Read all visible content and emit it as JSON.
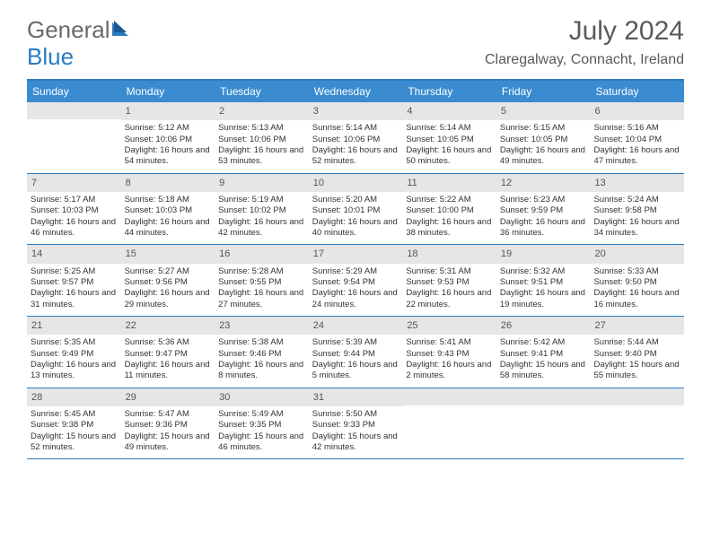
{
  "brand": {
    "part1": "General",
    "part2": "Blue"
  },
  "title": "July 2024",
  "location": "Claregalway, Connacht, Ireland",
  "colors": {
    "header_bar": "#3a8bd0",
    "border": "#2b7bbf",
    "daynum_bg": "#e6e6e6",
    "text": "#333333",
    "title_text": "#5a5a5a",
    "brand_gray": "#6a6a6a",
    "brand_blue": "#2b7bbf"
  },
  "dow": [
    "Sunday",
    "Monday",
    "Tuesday",
    "Wednesday",
    "Thursday",
    "Friday",
    "Saturday"
  ],
  "weeks": [
    [
      {
        "n": "",
        "sr": "",
        "ss": "",
        "dl": ""
      },
      {
        "n": "1",
        "sr": "Sunrise: 5:12 AM",
        "ss": "Sunset: 10:06 PM",
        "dl": "Daylight: 16 hours and 54 minutes."
      },
      {
        "n": "2",
        "sr": "Sunrise: 5:13 AM",
        "ss": "Sunset: 10:06 PM",
        "dl": "Daylight: 16 hours and 53 minutes."
      },
      {
        "n": "3",
        "sr": "Sunrise: 5:14 AM",
        "ss": "Sunset: 10:06 PM",
        "dl": "Daylight: 16 hours and 52 minutes."
      },
      {
        "n": "4",
        "sr": "Sunrise: 5:14 AM",
        "ss": "Sunset: 10:05 PM",
        "dl": "Daylight: 16 hours and 50 minutes."
      },
      {
        "n": "5",
        "sr": "Sunrise: 5:15 AM",
        "ss": "Sunset: 10:05 PM",
        "dl": "Daylight: 16 hours and 49 minutes."
      },
      {
        "n": "6",
        "sr": "Sunrise: 5:16 AM",
        "ss": "Sunset: 10:04 PM",
        "dl": "Daylight: 16 hours and 47 minutes."
      }
    ],
    [
      {
        "n": "7",
        "sr": "Sunrise: 5:17 AM",
        "ss": "Sunset: 10:03 PM",
        "dl": "Daylight: 16 hours and 46 minutes."
      },
      {
        "n": "8",
        "sr": "Sunrise: 5:18 AM",
        "ss": "Sunset: 10:03 PM",
        "dl": "Daylight: 16 hours and 44 minutes."
      },
      {
        "n": "9",
        "sr": "Sunrise: 5:19 AM",
        "ss": "Sunset: 10:02 PM",
        "dl": "Daylight: 16 hours and 42 minutes."
      },
      {
        "n": "10",
        "sr": "Sunrise: 5:20 AM",
        "ss": "Sunset: 10:01 PM",
        "dl": "Daylight: 16 hours and 40 minutes."
      },
      {
        "n": "11",
        "sr": "Sunrise: 5:22 AM",
        "ss": "Sunset: 10:00 PM",
        "dl": "Daylight: 16 hours and 38 minutes."
      },
      {
        "n": "12",
        "sr": "Sunrise: 5:23 AM",
        "ss": "Sunset: 9:59 PM",
        "dl": "Daylight: 16 hours and 36 minutes."
      },
      {
        "n": "13",
        "sr": "Sunrise: 5:24 AM",
        "ss": "Sunset: 9:58 PM",
        "dl": "Daylight: 16 hours and 34 minutes."
      }
    ],
    [
      {
        "n": "14",
        "sr": "Sunrise: 5:25 AM",
        "ss": "Sunset: 9:57 PM",
        "dl": "Daylight: 16 hours and 31 minutes."
      },
      {
        "n": "15",
        "sr": "Sunrise: 5:27 AM",
        "ss": "Sunset: 9:56 PM",
        "dl": "Daylight: 16 hours and 29 minutes."
      },
      {
        "n": "16",
        "sr": "Sunrise: 5:28 AM",
        "ss": "Sunset: 9:55 PM",
        "dl": "Daylight: 16 hours and 27 minutes."
      },
      {
        "n": "17",
        "sr": "Sunrise: 5:29 AM",
        "ss": "Sunset: 9:54 PM",
        "dl": "Daylight: 16 hours and 24 minutes."
      },
      {
        "n": "18",
        "sr": "Sunrise: 5:31 AM",
        "ss": "Sunset: 9:53 PM",
        "dl": "Daylight: 16 hours and 22 minutes."
      },
      {
        "n": "19",
        "sr": "Sunrise: 5:32 AM",
        "ss": "Sunset: 9:51 PM",
        "dl": "Daylight: 16 hours and 19 minutes."
      },
      {
        "n": "20",
        "sr": "Sunrise: 5:33 AM",
        "ss": "Sunset: 9:50 PM",
        "dl": "Daylight: 16 hours and 16 minutes."
      }
    ],
    [
      {
        "n": "21",
        "sr": "Sunrise: 5:35 AM",
        "ss": "Sunset: 9:49 PM",
        "dl": "Daylight: 16 hours and 13 minutes."
      },
      {
        "n": "22",
        "sr": "Sunrise: 5:36 AM",
        "ss": "Sunset: 9:47 PM",
        "dl": "Daylight: 16 hours and 11 minutes."
      },
      {
        "n": "23",
        "sr": "Sunrise: 5:38 AM",
        "ss": "Sunset: 9:46 PM",
        "dl": "Daylight: 16 hours and 8 minutes."
      },
      {
        "n": "24",
        "sr": "Sunrise: 5:39 AM",
        "ss": "Sunset: 9:44 PM",
        "dl": "Daylight: 16 hours and 5 minutes."
      },
      {
        "n": "25",
        "sr": "Sunrise: 5:41 AM",
        "ss": "Sunset: 9:43 PM",
        "dl": "Daylight: 16 hours and 2 minutes."
      },
      {
        "n": "26",
        "sr": "Sunrise: 5:42 AM",
        "ss": "Sunset: 9:41 PM",
        "dl": "Daylight: 15 hours and 58 minutes."
      },
      {
        "n": "27",
        "sr": "Sunrise: 5:44 AM",
        "ss": "Sunset: 9:40 PM",
        "dl": "Daylight: 15 hours and 55 minutes."
      }
    ],
    [
      {
        "n": "28",
        "sr": "Sunrise: 5:45 AM",
        "ss": "Sunset: 9:38 PM",
        "dl": "Daylight: 15 hours and 52 minutes."
      },
      {
        "n": "29",
        "sr": "Sunrise: 5:47 AM",
        "ss": "Sunset: 9:36 PM",
        "dl": "Daylight: 15 hours and 49 minutes."
      },
      {
        "n": "30",
        "sr": "Sunrise: 5:49 AM",
        "ss": "Sunset: 9:35 PM",
        "dl": "Daylight: 15 hours and 46 minutes."
      },
      {
        "n": "31",
        "sr": "Sunrise: 5:50 AM",
        "ss": "Sunset: 9:33 PM",
        "dl": "Daylight: 15 hours and 42 minutes."
      },
      {
        "n": "",
        "sr": "",
        "ss": "",
        "dl": ""
      },
      {
        "n": "",
        "sr": "",
        "ss": "",
        "dl": ""
      },
      {
        "n": "",
        "sr": "",
        "ss": "",
        "dl": ""
      }
    ]
  ]
}
